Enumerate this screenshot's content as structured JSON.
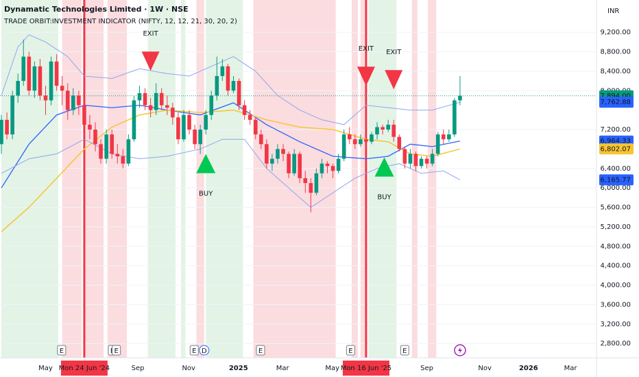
{
  "chart_data": {
    "type": "candlestick",
    "title": "Dynamatic Technologies Limited · 1W · NSE",
    "subtitle": "TRADE ORBIT:INVESTMENT INDICATOR (NIFTY, 12, 12, 21, 30, 20, 2)",
    "currency": "INR",
    "ylim": [
      2507,
      9864
    ],
    "xlim": [
      -0.25,
      107.7
    ],
    "yticks": [
      {
        "value": 9200,
        "label": "9,200.00"
      },
      {
        "value": 8800,
        "label": "8,800.00"
      },
      {
        "value": 8400,
        "label": "8,400.00"
      },
      {
        "value": 8000,
        "label": "8,000.00"
      },
      {
        "value": 7200,
        "label": "7,200.00"
      },
      {
        "value": 6400,
        "label": "6,400.00"
      },
      {
        "value": 6000,
        "label": "6,000.00"
      },
      {
        "value": 5600,
        "label": "5,600.00"
      },
      {
        "value": 5200,
        "label": "5,200.00"
      },
      {
        "value": 4800,
        "label": "4,800.00"
      },
      {
        "value": 4400,
        "label": "4,400.00"
      },
      {
        "value": 4000,
        "label": "4,000.00"
      },
      {
        "value": 3600,
        "label": "3,600.00"
      },
      {
        "value": 3200,
        "label": "3,200.00"
      },
      {
        "value": 2800,
        "label": "2,800.00"
      }
    ],
    "xticks": [
      {
        "value": 8,
        "label": "May"
      },
      {
        "value": 15,
        "label": "Mon 24 Jun '24",
        "highlight": true
      },
      {
        "value": 24.7,
        "label": "Sep"
      },
      {
        "value": 33.9,
        "label": "Nov"
      },
      {
        "value": 42.9,
        "label": "2025",
        "bold": true
      },
      {
        "value": 50.9,
        "label": "Mar"
      },
      {
        "value": 59.9,
        "label": "May"
      },
      {
        "value": 66,
        "label": "Mon 16 Jun '25",
        "highlight": true
      },
      {
        "value": 77,
        "label": "Sep"
      },
      {
        "value": 87.5,
        "label": "Nov"
      },
      {
        "value": 95.4,
        "label": "2026",
        "bold": true
      },
      {
        "value": 103,
        "label": "Mar"
      }
    ],
    "up_color": "#089981",
    "down_color": "#f23645",
    "candles": [
      [
        6900,
        7500,
        6700,
        7400
      ],
      [
        7400,
        7550,
        7000,
        7100
      ],
      [
        7100,
        8000,
        7000,
        7900
      ],
      [
        7900,
        8350,
        7750,
        8200
      ],
      [
        8200,
        9050,
        8100,
        8700
      ],
      [
        8700,
        8800,
        7900,
        8000
      ],
      [
        8000,
        8600,
        7850,
        8500
      ],
      [
        8500,
        8650,
        7800,
        7900
      ],
      [
        7900,
        8100,
        7500,
        7800
      ],
      [
        7800,
        8700,
        7700,
        8600
      ],
      [
        8600,
        8750,
        8000,
        8100
      ],
      [
        8100,
        8300,
        7700,
        8000
      ],
      [
        8000,
        8150,
        7400,
        7600
      ],
      [
        7600,
        8050,
        7500,
        7900
      ],
      [
        7900,
        8000,
        7500,
        7700
      ],
      [
        7700,
        7850,
        6900,
        7300
      ],
      [
        7300,
        7500,
        7000,
        7200
      ],
      [
        7200,
        7350,
        6750,
        6900
      ],
      [
        6900,
        7000,
        6500,
        6600
      ],
      [
        6600,
        7200,
        6500,
        7100
      ],
      [
        7100,
        7200,
        6600,
        6700
      ],
      [
        6700,
        6900,
        6500,
        6650
      ],
      [
        6650,
        6800,
        6400,
        6500
      ],
      [
        6500,
        7100,
        6450,
        7000
      ],
      [
        7000,
        7900,
        6950,
        7800
      ],
      [
        7800,
        8100,
        7650,
        7950
      ],
      [
        7950,
        8050,
        7600,
        7700
      ],
      [
        7700,
        7850,
        7450,
        7600
      ],
      [
        7600,
        8150,
        7500,
        7950
      ],
      [
        7950,
        8050,
        7600,
        7700
      ],
      [
        7700,
        7900,
        7500,
        7650
      ],
      [
        7650,
        7750,
        7300,
        7450
      ],
      [
        7450,
        7550,
        6900,
        7000
      ],
      [
        7000,
        7600,
        6950,
        7500
      ],
      [
        7500,
        7600,
        7100,
        7200
      ],
      [
        7200,
        7300,
        6800,
        6900
      ],
      [
        6900,
        7300,
        6700,
        7200
      ],
      [
        7200,
        7600,
        7100,
        7500
      ],
      [
        7500,
        8000,
        7400,
        7900
      ],
      [
        7900,
        8700,
        7800,
        8300
      ],
      [
        8300,
        8650,
        8200,
        8500
      ],
      [
        8500,
        8550,
        7900,
        8000
      ],
      [
        8000,
        8300,
        7950,
        8200
      ],
      [
        8200,
        8250,
        7600,
        7700
      ],
      [
        7700,
        7800,
        7400,
        7500
      ],
      [
        7500,
        7600,
        7300,
        7400
      ],
      [
        7400,
        7450,
        7000,
        7100
      ],
      [
        7100,
        7200,
        6800,
        6900
      ],
      [
        6900,
        7000,
        6400,
        6500
      ],
      [
        6500,
        6700,
        6350,
        6600
      ],
      [
        6600,
        6900,
        6500,
        6800
      ],
      [
        6800,
        6900,
        6550,
        6700
      ],
      [
        6700,
        6750,
        6200,
        6300
      ],
      [
        6300,
        6800,
        6250,
        6700
      ],
      [
        6700,
        6750,
        6100,
        6200
      ],
      [
        6200,
        6350,
        5900,
        6100
      ],
      [
        6100,
        6200,
        5500,
        5900
      ],
      [
        5900,
        6400,
        5850,
        6300
      ],
      [
        6300,
        6600,
        6200,
        6500
      ],
      [
        6500,
        6550,
        6300,
        6450
      ],
      [
        6450,
        6500,
        6200,
        6350
      ],
      [
        6350,
        6700,
        6300,
        6600
      ],
      [
        6600,
        7200,
        6550,
        7100
      ],
      [
        7100,
        7250,
        6900,
        7000
      ],
      [
        7000,
        7100,
        6800,
        6900
      ],
      [
        6900,
        7100,
        6850,
        7000
      ],
      [
        7000,
        7150,
        6900,
        6950
      ],
      [
        6950,
        7150,
        6900,
        7100
      ],
      [
        7100,
        7350,
        7000,
        7250
      ],
      [
        7250,
        7300,
        7100,
        7200
      ],
      [
        7200,
        7400,
        7150,
        7300
      ],
      [
        7300,
        7400,
        6950,
        7050
      ],
      [
        7050,
        7100,
        6750,
        6800
      ],
      [
        6800,
        6850,
        6400,
        6500
      ],
      [
        6500,
        6800,
        6400,
        6700
      ],
      [
        6700,
        6750,
        6350,
        6450
      ],
      [
        6450,
        6650,
        6400,
        6600
      ],
      [
        6600,
        6650,
        6400,
        6500
      ],
      [
        6500,
        6800,
        6450,
        6700
      ],
      [
        6700,
        7150,
        6650,
        7100
      ],
      [
        7100,
        7200,
        6900,
        7000
      ],
      [
        7000,
        7200,
        6950,
        7100
      ],
      [
        7100,
        7850,
        7050,
        7800
      ],
      [
        7800,
        8300,
        7700,
        7894
      ]
    ],
    "bands": [
      {
        "start": 0,
        "end": 10.3,
        "color": "#e3f3e6"
      },
      {
        "start": 11,
        "end": 14.5,
        "color": "#fbdcdf"
      },
      {
        "start": 15,
        "end": 18.5,
        "color": "#fbdcdf"
      },
      {
        "start": 19.2,
        "end": 22.7,
        "color": "#fbdcdf"
      },
      {
        "start": 26.5,
        "end": 31.5,
        "color": "#e3f3e6"
      },
      {
        "start": 32.5,
        "end": 33.3,
        "color": "#e3f3e6"
      },
      {
        "start": 35.3,
        "end": 36.7,
        "color": "#fbdcdf"
      },
      {
        "start": 37,
        "end": 43.7,
        "color": "#e3f3e6"
      },
      {
        "start": 45.6,
        "end": 60.5,
        "color": "#fbdcdf"
      },
      {
        "start": 63.4,
        "end": 64.5,
        "color": "#fbdcdf"
      },
      {
        "start": 65,
        "end": 65.8,
        "color": "#fbdcdf"
      },
      {
        "start": 66.4,
        "end": 71.5,
        "color": "#e3f3e6"
      },
      {
        "start": 74.3,
        "end": 75.3,
        "color": "#fbdcdf"
      },
      {
        "start": 77.2,
        "end": 78.7,
        "color": "#fbdcdf"
      }
    ],
    "vlines": [
      {
        "x": 15,
        "color": "#f23645"
      },
      {
        "x": 66,
        "color": "#f23645"
      }
    ],
    "lines": [
      {
        "color": "#8fa5f0",
        "width": 1,
        "x": [
          0,
          3,
          5,
          8,
          12,
          15,
          20,
          25,
          30,
          34,
          38,
          42,
          46,
          50,
          54,
          58,
          62,
          66,
          70,
          74,
          78,
          83
        ],
        "values": [
          7900,
          8900,
          9150,
          9000,
          8700,
          8300,
          8250,
          8450,
          8350,
          8300,
          8500,
          8700,
          8400,
          7900,
          7600,
          7400,
          7300,
          7700,
          7650,
          7600,
          7600,
          7762.88
        ]
      },
      {
        "color": "#2962ff",
        "width": 1.3,
        "x": [
          0,
          5,
          10,
          15,
          20,
          25,
          30,
          36,
          42,
          48,
          54,
          60,
          66,
          70,
          74,
          78,
          83
        ],
        "values": [
          6000,
          6900,
          7500,
          7700,
          7650,
          7700,
          7600,
          7500,
          7750,
          7300,
          6950,
          6650,
          6600,
          6650,
          6900,
          6850,
          6964.33
        ]
      },
      {
        "color": "#f7c531",
        "width": 1.5,
        "x": [
          0,
          5,
          10,
          15,
          20,
          25,
          30,
          36,
          42,
          48,
          54,
          60,
          66,
          70,
          74,
          78,
          83
        ],
        "values": [
          5100,
          5600,
          6200,
          6800,
          7250,
          7500,
          7600,
          7550,
          7600,
          7400,
          7250,
          7200,
          7000,
          6950,
          6700,
          6650,
          6802.07
        ]
      },
      {
        "color": "#8fa5f0",
        "width": 1,
        "x": [
          0,
          5,
          10,
          15,
          20,
          25,
          30,
          36,
          40,
          44,
          48,
          52,
          56,
          60,
          64,
          68,
          72,
          76,
          80,
          83
        ],
        "values": [
          6300,
          6600,
          6700,
          7000,
          6700,
          6600,
          6650,
          6800,
          7000,
          7000,
          6400,
          6000,
          5600,
          5900,
          6200,
          6400,
          6500,
          6300,
          6350,
          6165.77
        ]
      }
    ],
    "last_labels": [
      {
        "value": 7894,
        "label": "7,894.00",
        "color": "#089981"
      },
      {
        "value": 7762.88,
        "label": "7,762.88",
        "color": "#2962ff"
      },
      {
        "value": 6964.33,
        "label": "6,964.33",
        "color": "#2962ff"
      },
      {
        "value": 6802.07,
        "label": "6,802.07",
        "color": "#f7c531"
      },
      {
        "value": 6165.77,
        "label": "6,165.77",
        "color": "#2962ff"
      }
    ],
    "signals": [
      {
        "x": 27,
        "value": 8550,
        "label": "EXIT",
        "kind": "exit"
      },
      {
        "x": 66,
        "value": 8240,
        "label": "EXIT",
        "kind": "exit"
      },
      {
        "x": 71,
        "value": 8170,
        "label": "EXIT",
        "kind": "exit"
      },
      {
        "x": 37,
        "value": 6500,
        "label": "BUY",
        "kind": "buy"
      },
      {
        "x": 69.3,
        "value": 6430,
        "label": "BUY",
        "kind": "buy"
      }
    ],
    "events": [
      {
        "x": 10.9,
        "label": "E"
      },
      {
        "x": 20.1,
        "label": "E"
      },
      {
        "x": 20.8,
        "label": "E"
      },
      {
        "x": 34.9,
        "label": "E"
      },
      {
        "x": 36.7,
        "label": "D"
      },
      {
        "x": 46.9,
        "label": "E"
      },
      {
        "x": 63.2,
        "label": "E"
      },
      {
        "x": 73,
        "label": "E"
      },
      {
        "x": 83,
        "icon": "bolt"
      }
    ]
  }
}
